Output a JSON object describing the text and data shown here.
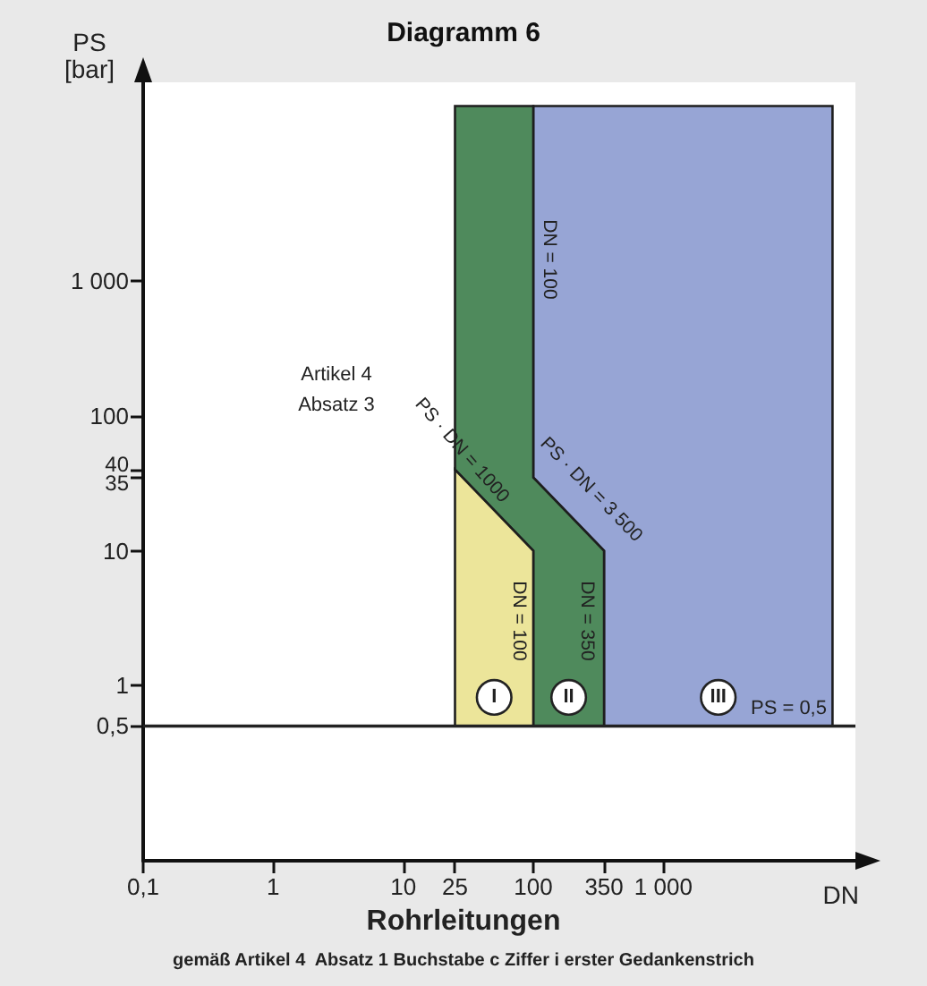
{
  "chart_data": {
    "type": "area",
    "title": "Diagramm 6",
    "xlabel": "DN",
    "ylabel": "PS\n[bar]",
    "log": "xy",
    "grid": false,
    "legend": false,
    "xlim": [
      0.1,
      30000
    ],
    "xticks": [
      {
        "value": 0.1,
        "label": "0,1"
      },
      1,
      10,
      25,
      100,
      350,
      {
        "value": 1000,
        "label": "1 000"
      }
    ],
    "ylim": [
      0.05,
      30000
    ],
    "yticks": [
      {
        "value": 0.5,
        "label": "0,5"
      },
      1,
      10,
      35,
      40,
      100,
      {
        "value": 1000,
        "label": "1 000"
      }
    ],
    "series": [
      {
        "name": "I",
        "color": "#ece59a",
        "x": [
          25,
          100,
          100,
          25
        ],
        "values": [
          40,
          10,
          0.5,
          0.5
        ]
      },
      {
        "name": "II",
        "color": "#4f8a5c",
        "x": [
          25,
          100,
          100,
          350,
          350,
          100,
          100,
          25
        ],
        "values": [
          20000,
          20000,
          35,
          10,
          0.5,
          0.5,
          10,
          40
        ]
      },
      {
        "name": "III",
        "color": "#97a5d5",
        "x": [
          100,
          20000,
          20000,
          350,
          350,
          100
        ],
        "values": [
          20000,
          20000,
          0.5,
          0.5,
          10,
          35
        ]
      }
    ],
    "ref_lines": [
      {
        "axis": "y",
        "value": 0.5,
        "label": "PS = 0,5",
        "color": "#222222"
      }
    ],
    "annotations": [
      "Artikel 4\nAbsatz 3",
      {
        "text": "PS · DN = 1000",
        "x": 28,
        "y": 55
      },
      "DN = 100",
      "DN = 100",
      "DN = 350",
      "PS · DN = 3 500",
      "Rohrleitungen",
      "gemäß Artikel 4  Absatz 1 Buchstabe c Ziffer i erster Gedankenstrich"
    ]
  }
}
